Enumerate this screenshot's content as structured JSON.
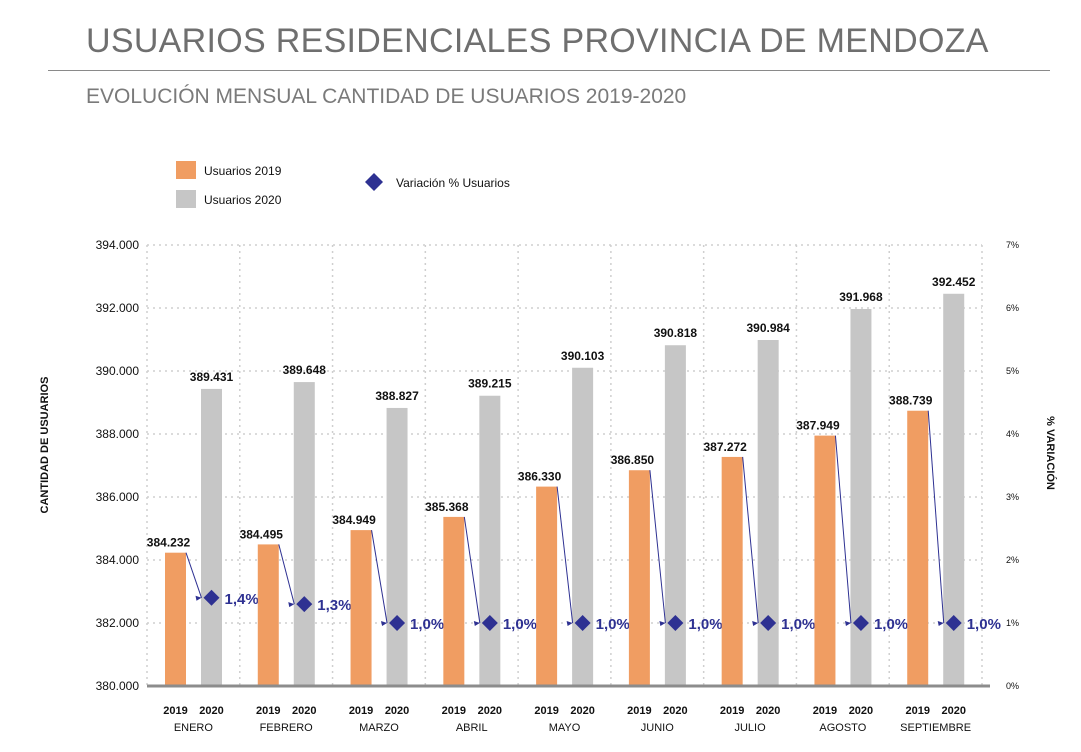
{
  "title": "USUARIOS RESIDENCIALES PROVINCIA DE MENDOZA",
  "subtitle": "EVOLUCIÓN MENSUAL CANTIDAD DE USUARIOS 2019-2020",
  "colors": {
    "bar2019": "#f09d62",
    "bar2020": "#c6c6c6",
    "variation": "#2e3192",
    "grid": "#cfcfcf"
  },
  "chart_data": {
    "type": "bar",
    "categories": [
      "ENERO",
      "FEBRERO",
      "MARZO",
      "ABRIL",
      "MAYO",
      "JUNIO",
      "JULIO",
      "AGOSTO",
      "SEPTIEMBRE"
    ],
    "sub_labels": [
      "2019",
      "2020"
    ],
    "series": [
      {
        "name": "Usuarios 2019",
        "values": [
          384232,
          384495,
          384949,
          385368,
          386330,
          386850,
          387272,
          387949,
          388739
        ],
        "labels": [
          "384.232",
          "384.495",
          "384.949",
          "385.368",
          "386.330",
          "386.850",
          "387.272",
          "387.949",
          "388.739"
        ]
      },
      {
        "name": "Usuarios 2020",
        "values": [
          389431,
          389648,
          388827,
          389215,
          390103,
          390818,
          390984,
          391968,
          392452
        ],
        "labels": [
          "389.431",
          "389.648",
          "388.827",
          "389.215",
          "390.103",
          "390.818",
          "390.984",
          "391.968",
          "392.452"
        ]
      },
      {
        "name": "Variación % Usuarios",
        "axis": "right",
        "values": [
          1.4,
          1.3,
          1.0,
          1.0,
          1.0,
          1.0,
          1.0,
          1.0,
          1.0
        ],
        "labels": [
          "1,4%",
          "1,3%",
          "1,0%",
          "1,0%",
          "1,0%",
          "1,0%",
          "1,0%",
          "1,0%",
          "1,0%"
        ]
      }
    ],
    "ylabel": "CANTIDAD DE USUARIOS",
    "y2label": "% VARIACIÓN",
    "ylim": [
      380000,
      394000
    ],
    "y2lim": [
      0,
      7
    ],
    "yticks": [
      "380.000",
      "382.000",
      "384.000",
      "386.000",
      "388.000",
      "390.000",
      "392.000",
      "394.000"
    ],
    "y2ticks": [
      "0%",
      "1%",
      "2%",
      "3%",
      "4%",
      "5%",
      "6%",
      "7%"
    ],
    "grid": true,
    "legend": "top-left"
  }
}
